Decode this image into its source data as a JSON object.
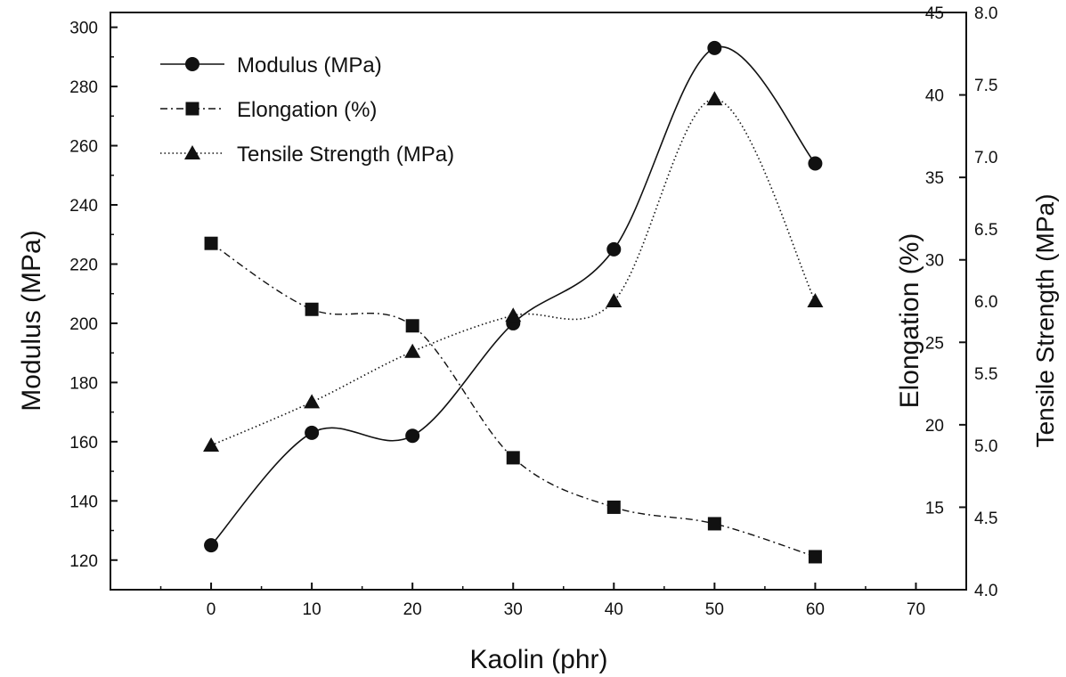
{
  "chart_data": {
    "type": "line",
    "title": "",
    "xlabel": "Kaolin (phr)",
    "xlim": [
      -10,
      75
    ],
    "xticks": [
      0,
      10,
      20,
      30,
      40,
      50,
      60,
      70
    ],
    "x": [
      0,
      10,
      20,
      30,
      40,
      50,
      60
    ],
    "axes": {
      "left": {
        "label": "Modulus (MPa)",
        "ylim": [
          110,
          305
        ],
        "ticks": [
          120,
          140,
          160,
          180,
          200,
          220,
          240,
          260,
          280,
          300
        ]
      },
      "right_inner": {
        "label": "Elongation (%)",
        "ylim": [
          10,
          45
        ],
        "ticks": [
          15,
          20,
          25,
          30,
          35,
          40,
          45
        ]
      },
      "right_outer": {
        "label": "Tensile Strength (MPa)",
        "ylim": [
          4.0,
          8.0
        ],
        "ticks": [
          "4.0",
          "4.5",
          "5.0",
          "5.5",
          "6.0",
          "6.5",
          "7.0",
          "7.5",
          "8.0"
        ]
      }
    },
    "series": [
      {
        "name": "Modulus (MPa)",
        "axis": "left",
        "marker": "circle",
        "style": "solid",
        "values": [
          125,
          163,
          162,
          200,
          225,
          293,
          254
        ]
      },
      {
        "name": "Elongation (%)",
        "axis": "right_inner",
        "marker": "square",
        "style": "dashdot",
        "values": [
          31,
          27,
          26,
          18,
          15,
          14,
          12
        ]
      },
      {
        "name": "Tensile Strength (MPa)",
        "axis": "right_outer",
        "marker": "triangle",
        "style": "dotted",
        "values": [
          5.0,
          5.3,
          5.65,
          5.9,
          6.0,
          7.4,
          6.0
        ]
      }
    ],
    "legend": "top-left",
    "grid": false
  }
}
